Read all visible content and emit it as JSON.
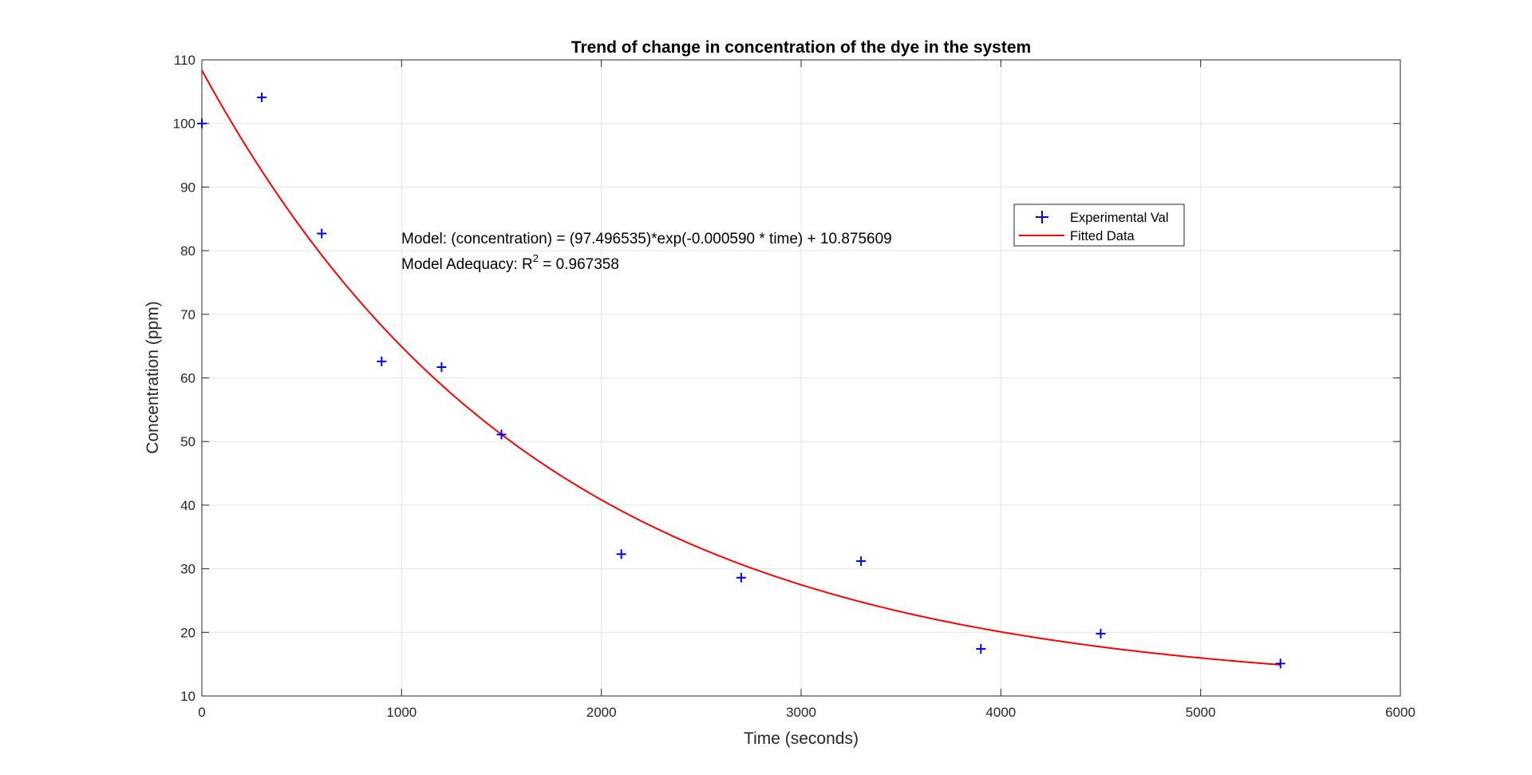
{
  "chart_data": {
    "type": "scatter",
    "title": "Trend of change in concentration of the dye in the system",
    "xlabel": "Time (seconds)",
    "ylabel": "Concentration (ppm)",
    "xlim": [
      0,
      6000
    ],
    "ylim": [
      10,
      110
    ],
    "xticks": [
      0,
      1000,
      2000,
      3000,
      4000,
      5000,
      6000
    ],
    "yticks": [
      10,
      20,
      30,
      40,
      50,
      60,
      70,
      80,
      90,
      100,
      110
    ],
    "grid": true,
    "legend_position": "top-right",
    "series": [
      {
        "name": "Experimental Val",
        "kind": "scatter",
        "marker": "+",
        "color": "#0000ff",
        "x": [
          0,
          300,
          600,
          900,
          1200,
          1500,
          2100,
          2700,
          3300,
          3900,
          4500,
          5400
        ],
        "y": [
          100,
          104.1,
          82.7,
          62.6,
          61.7,
          51.1,
          32.3,
          28.6,
          31.2,
          17.4,
          19.8,
          15.1
        ]
      },
      {
        "name": "Fitted Data",
        "kind": "line",
        "color": "#ff0000",
        "model": {
          "a": 97.496535,
          "b": -0.00059,
          "c": 10.875609,
          "x_start": 0,
          "x_end": 5400
        }
      }
    ],
    "annotations": {
      "model_text": "Model: (concentration) = (97.496535)*exp(-0.000590 * time) + 10.875609",
      "adequacy_prefix": "Model Adequacy: R",
      "adequacy_superscript": "2",
      "adequacy_value": " = 0.967358"
    }
  }
}
